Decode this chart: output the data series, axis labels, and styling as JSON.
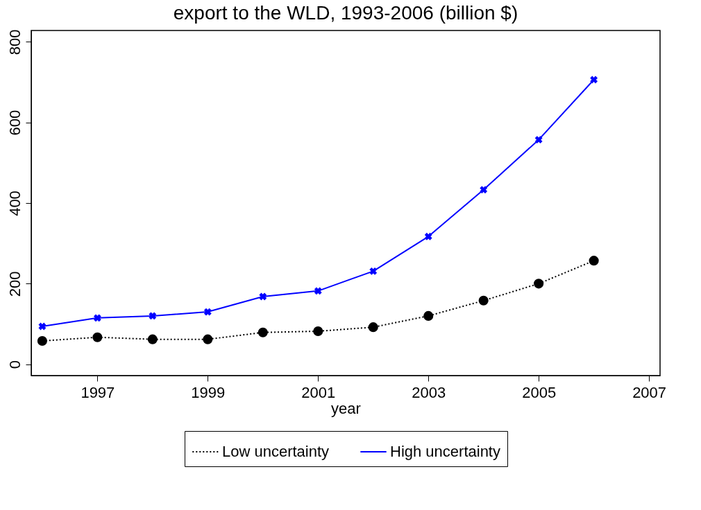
{
  "chart_data": {
    "type": "line",
    "title": "export to the WLD, 1993-2006 (billion $)",
    "xlabel": "year",
    "x": [
      1996,
      1997,
      1998,
      1999,
      2000,
      2001,
      2002,
      2003,
      2004,
      2005,
      2006
    ],
    "series": [
      {
        "name": "Low uncertainty",
        "color": "#000000",
        "marker": "circle",
        "line_style": "dotted",
        "values": [
          58,
          67,
          62,
          62,
          79,
          82,
          92,
          120,
          158,
          200,
          257
        ]
      },
      {
        "name": "High uncertainty",
        "color": "#0000ff",
        "marker": "cross",
        "line_style": "solid",
        "values": [
          94,
          115,
          120,
          130,
          168,
          182,
          231,
          317,
          433,
          557,
          706
        ]
      }
    ],
    "xlim": [
      1995.8,
      2007.2
    ],
    "xticks": [
      1997,
      1999,
      2001,
      2003,
      2005,
      2007
    ],
    "ylim": [
      -28,
      828
    ],
    "yticks": [
      0,
      200,
      400,
      600,
      800
    ],
    "grid": false,
    "legend": "bottom"
  }
}
